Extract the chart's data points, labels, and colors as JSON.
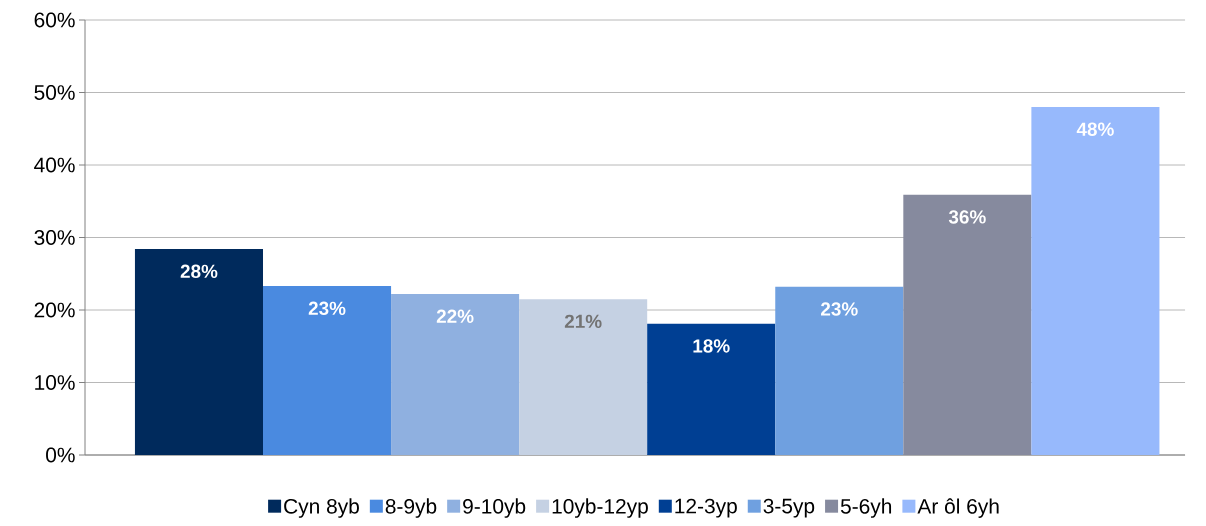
{
  "chart_data": {
    "type": "bar",
    "categories": [
      null
    ],
    "series": [
      {
        "name": "Cyn 8yb",
        "color": "#002a5c",
        "values": [
          28.4
        ],
        "value_labels": [
          "28%"
        ]
      },
      {
        "name": "8-9yb",
        "color": "#4a8ae0",
        "values": [
          23.3
        ],
        "value_labels": [
          "23%"
        ]
      },
      {
        "name": "9-10yb",
        "color": "#8fb0e0",
        "values": [
          22.2
        ],
        "value_labels": [
          "22%"
        ]
      },
      {
        "name": "10yb-12yp",
        "color": "#c5d1e3",
        "values": [
          21.5
        ],
        "value_labels": [
          "21%"
        ]
      },
      {
        "name": "12-3yp",
        "color": "#003f93",
        "values": [
          18.1
        ],
        "value_labels": [
          "18%"
        ]
      },
      {
        "name": "3-5yp",
        "color": "#6fa0e0",
        "values": [
          23.2
        ],
        "value_labels": [
          "23%"
        ]
      },
      {
        "name": "5-6yh",
        "color": "#868a9e",
        "values": [
          35.9
        ],
        "value_labels": [
          "36%"
        ]
      },
      {
        "name": "Ar ôl 6yh",
        "color": "#97b9fc",
        "values": [
          48.0
        ],
        "value_labels": [
          "48%"
        ]
      }
    ],
    "ylim": [
      0,
      60
    ],
    "yticks": [
      {
        "value": 0,
        "label": "0%"
      },
      {
        "value": 10,
        "label": "10%"
      },
      {
        "value": 20,
        "label": "20%"
      },
      {
        "value": 30,
        "label": "30%"
      },
      {
        "value": 40,
        "label": "40%"
      },
      {
        "value": 50,
        "label": "50%"
      },
      {
        "value": 60,
        "label": "60%"
      }
    ],
    "grid": "y",
    "legend": "bottom"
  }
}
